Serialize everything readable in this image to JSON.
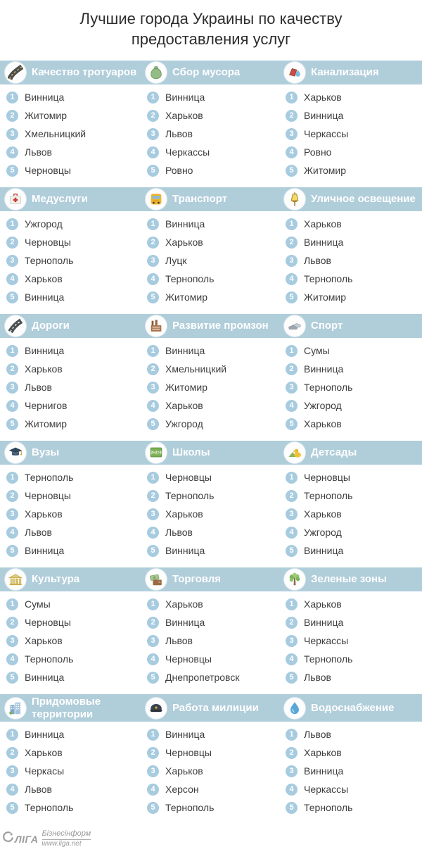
{
  "title": "Лучшие города Украины по качеству предоставления услуг",
  "colors": {
    "header_bar": "#b0cdda",
    "header_text": "#ffffff",
    "rank_circle": "#a7cbdf",
    "city_text": "#3d3d3d",
    "background": "#ffffff",
    "footer_text": "#9b9b9b"
  },
  "columns_per_row": 3,
  "chart_data": {
    "type": "table",
    "title": "Лучшие города Украины по качеству предоставления услуг",
    "rank_labels": [
      "1",
      "2",
      "3",
      "4",
      "5"
    ],
    "sections": [
      {
        "label": "Качество тротуаров",
        "icon": "sidewalk-icon",
        "cities": [
          "Винница",
          "Житомир",
          "Хмельницкий",
          "Львов",
          "Черновцы"
        ]
      },
      {
        "label": "Сбор мусора",
        "icon": "garbage-bag-icon",
        "cities": [
          "Винница",
          "Харьков",
          "Львов",
          "Черкассы",
          "Ровно"
        ]
      },
      {
        "label": "Канализация",
        "icon": "sewerage-icon",
        "cities": [
          "Харьков",
          "Винница",
          "Черкассы",
          "Ровно",
          "Житомир"
        ]
      },
      {
        "label": "Медуслуги",
        "icon": "first-aid-kit-icon",
        "cities": [
          "Ужгород",
          "Черновцы",
          "Тернополь",
          "Харьков",
          "Винница"
        ]
      },
      {
        "label": "Транспорт",
        "icon": "bus-icon",
        "cities": [
          "Винница",
          "Харьков",
          "Луцк",
          "Тернополь",
          "Житомир"
        ]
      },
      {
        "label": "Уличное освещение",
        "icon": "street-lamp-icon",
        "cities": [
          "Харьков",
          "Винница",
          "Львов",
          "Тернополь",
          "Житомир"
        ]
      },
      {
        "label": "Дороги",
        "icon": "road-icon",
        "cities": [
          "Винница",
          "Харьков",
          "Львов",
          "Чернигов",
          "Житомир"
        ]
      },
      {
        "label": "Развитие промзон",
        "icon": "factory-icon",
        "cities": [
          "Винница",
          "Хмельницкий",
          "Житомир",
          "Харьков",
          "Ужгород"
        ]
      },
      {
        "label": "Спорт",
        "icon": "sneakers-icon",
        "cities": [
          "Сумы",
          "Винница",
          "Тернополь",
          "Ужгород",
          "Харьков"
        ]
      },
      {
        "label": "Вузы",
        "icon": "graduation-cap-icon",
        "cities": [
          "Тернополь",
          "Черновцы",
          "Харьков",
          "Львов",
          "Винница"
        ]
      },
      {
        "label": "Школы",
        "icon": "school-board-icon",
        "cities": [
          "Черновцы",
          "Тернополь",
          "Харьков",
          "Львов",
          "Винница"
        ]
      },
      {
        "label": "Детсады",
        "icon": "toys-icon",
        "cities": [
          "Черновцы",
          "Тернополь",
          "Харьков",
          "Ужгород",
          "Винница"
        ]
      },
      {
        "label": "Культура",
        "icon": "museum-icon",
        "cities": [
          "Сумы",
          "Черновцы",
          "Харьков",
          "Тернополь",
          "Винница"
        ]
      },
      {
        "label": "Торговля",
        "icon": "money-icon",
        "cities": [
          "Харьков",
          "Винница",
          "Львов",
          "Черновцы",
          "Днепропетровск"
        ]
      },
      {
        "label": "Зеленые зоны",
        "icon": "tree-icon",
        "cities": [
          "Харьков",
          "Винница",
          "Черкассы",
          "Тернополь",
          "Львов"
        ]
      },
      {
        "label": "Придомовые территории",
        "icon": "buildings-icon",
        "cities": [
          "Винница",
          "Харьков",
          "Черкасы",
          "Львов",
          "Тернополь"
        ]
      },
      {
        "label": "Работа милиции",
        "icon": "police-cap-icon",
        "cities": [
          "Винница",
          "Черновцы",
          "Харьков",
          "Херсон",
          "Тернополь"
        ]
      },
      {
        "label": "Водоснабжение",
        "icon": "water-drop-icon",
        "cities": [
          "Львов",
          "Харьков",
          "Винница",
          "Черкассы",
          "Тернополь"
        ]
      }
    ]
  },
  "footer": {
    "brand": "ЛІГА",
    "division": "Бізнесінформ",
    "url": "www.liga.net"
  }
}
